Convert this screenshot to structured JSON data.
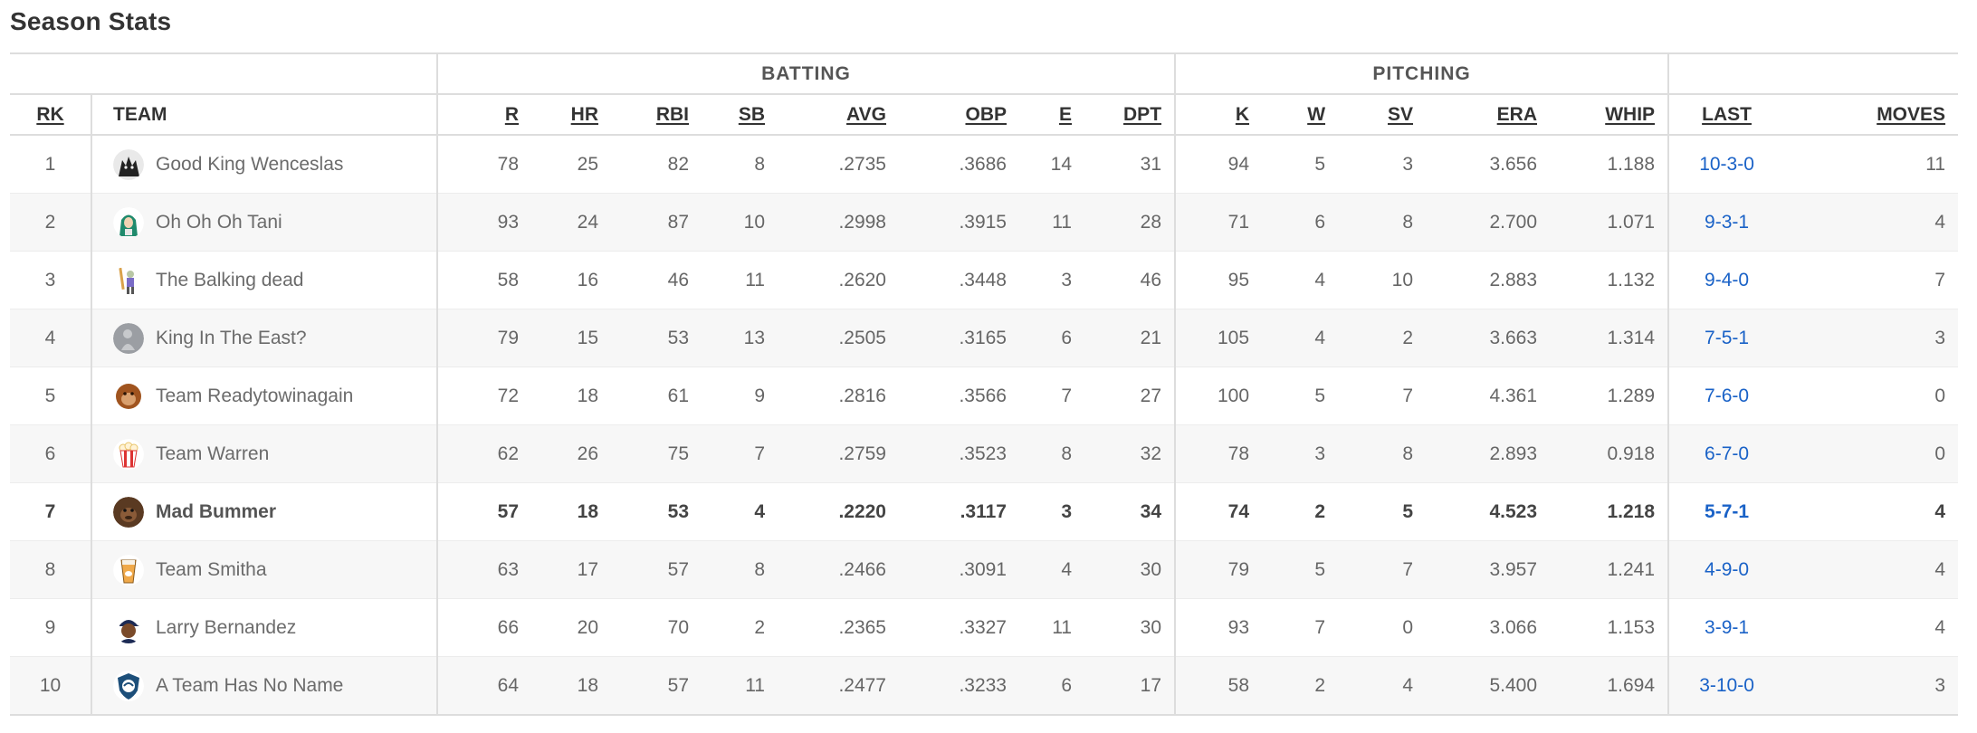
{
  "title": "Season Stats",
  "groups": {
    "batting": "BATTING",
    "pitching": "PITCHING"
  },
  "columns": {
    "rk": "RK",
    "team": "TEAM",
    "r": "R",
    "hr": "HR",
    "rbi": "RBI",
    "sb": "SB",
    "avg": "AVG",
    "obp": "OBP",
    "e": "E",
    "dpt": "DPT",
    "k": "K",
    "w": "W",
    "sv": "SV",
    "era": "ERA",
    "whip": "WHIP",
    "last": "LAST",
    "moves": "MOVES"
  },
  "teams": [
    {
      "rk": "1",
      "name": "Good King Wenceslas",
      "avatar": "wolf-avatar-icon",
      "r": "78",
      "hr": "25",
      "rbi": "82",
      "sb": "8",
      "avg": ".2735",
      "obp": ".3686",
      "e": "14",
      "dpt": "31",
      "k": "94",
      "w": "5",
      "sv": "3",
      "era": "3.656",
      "whip": "1.188",
      "last": "10-3-0",
      "moves": "11"
    },
    {
      "rk": "2",
      "name": "Oh Oh Oh Tani",
      "avatar": "hoodie-avatar-icon",
      "r": "93",
      "hr": "24",
      "rbi": "87",
      "sb": "10",
      "avg": ".2998",
      "obp": ".3915",
      "e": "11",
      "dpt": "28",
      "k": "71",
      "w": "6",
      "sv": "8",
      "era": "2.700",
      "whip": "1.071",
      "last": "9-3-1",
      "moves": "4"
    },
    {
      "rk": "3",
      "name": "The Balking dead",
      "avatar": "zombie-batter-avatar-icon",
      "r": "58",
      "hr": "16",
      "rbi": "46",
      "sb": "11",
      "avg": ".2620",
      "obp": ".3448",
      "e": "3",
      "dpt": "46",
      "k": "95",
      "w": "4",
      "sv": "10",
      "era": "2.883",
      "whip": "1.132",
      "last": "9-4-0",
      "moves": "7"
    },
    {
      "rk": "4",
      "name": "King In The East?",
      "avatar": "statue-avatar-icon",
      "r": "79",
      "hr": "15",
      "rbi": "53",
      "sb": "13",
      "avg": ".2505",
      "obp": ".3165",
      "e": "6",
      "dpt": "21",
      "k": "105",
      "w": "4",
      "sv": "2",
      "era": "3.663",
      "whip": "1.314",
      "last": "7-5-1",
      "moves": "3"
    },
    {
      "rk": "5",
      "name": "Team Readytowinagain",
      "avatar": "ape-avatar-icon",
      "r": "72",
      "hr": "18",
      "rbi": "61",
      "sb": "9",
      "avg": ".2816",
      "obp": ".3566",
      "e": "7",
      "dpt": "27",
      "k": "100",
      "w": "5",
      "sv": "7",
      "era": "4.361",
      "whip": "1.289",
      "last": "7-6-0",
      "moves": "0"
    },
    {
      "rk": "6",
      "name": "Team Warren",
      "avatar": "popcorn-avatar-icon",
      "r": "62",
      "hr": "26",
      "rbi": "75",
      "sb": "7",
      "avg": ".2759",
      "obp": ".3523",
      "e": "8",
      "dpt": "32",
      "k": "78",
      "w": "3",
      "sv": "8",
      "era": "2.893",
      "whip": "0.918",
      "last": "6-7-0",
      "moves": "0"
    },
    {
      "rk": "7",
      "name": "Mad Bummer",
      "avatar": "gorilla-avatar-icon",
      "mine": true,
      "r": "57",
      "hr": "18",
      "rbi": "53",
      "sb": "4",
      "avg": ".2220",
      "obp": ".3117",
      "e": "3",
      "dpt": "34",
      "k": "74",
      "w": "2",
      "sv": "5",
      "era": "4.523",
      "whip": "1.218",
      "last": "5-7-1",
      "moves": "4"
    },
    {
      "rk": "8",
      "name": "Team Smitha",
      "avatar": "drink-cup-avatar-icon",
      "r": "63",
      "hr": "17",
      "rbi": "57",
      "sb": "8",
      "avg": ".2466",
      "obp": ".3091",
      "e": "4",
      "dpt": "30",
      "k": "79",
      "w": "5",
      "sv": "7",
      "era": "3.957",
      "whip": "1.241",
      "last": "4-9-0",
      "moves": "4"
    },
    {
      "rk": "9",
      "name": "Larry Bernandez",
      "avatar": "ballplayer-avatar-icon",
      "r": "66",
      "hr": "20",
      "rbi": "70",
      "sb": "2",
      "avg": ".2365",
      "obp": ".3327",
      "e": "11",
      "dpt": "30",
      "k": "93",
      "w": "7",
      "sv": "0",
      "era": "3.066",
      "whip": "1.153",
      "last": "3-9-1",
      "moves": "4"
    },
    {
      "rk": "10",
      "name": "A Team Has No Name",
      "avatar": "shield-avatar-icon",
      "r": "64",
      "hr": "18",
      "rbi": "57",
      "sb": "11",
      "avg": ".2477",
      "obp": ".3233",
      "e": "6",
      "dpt": "17",
      "k": "58",
      "w": "2",
      "sv": "4",
      "era": "5.400",
      "whip": "1.694",
      "last": "3-10-0",
      "moves": "3"
    }
  ],
  "colors": {
    "link": "#1a62c7",
    "border": "#dddddd",
    "stripe": "#f7f7f7"
  }
}
